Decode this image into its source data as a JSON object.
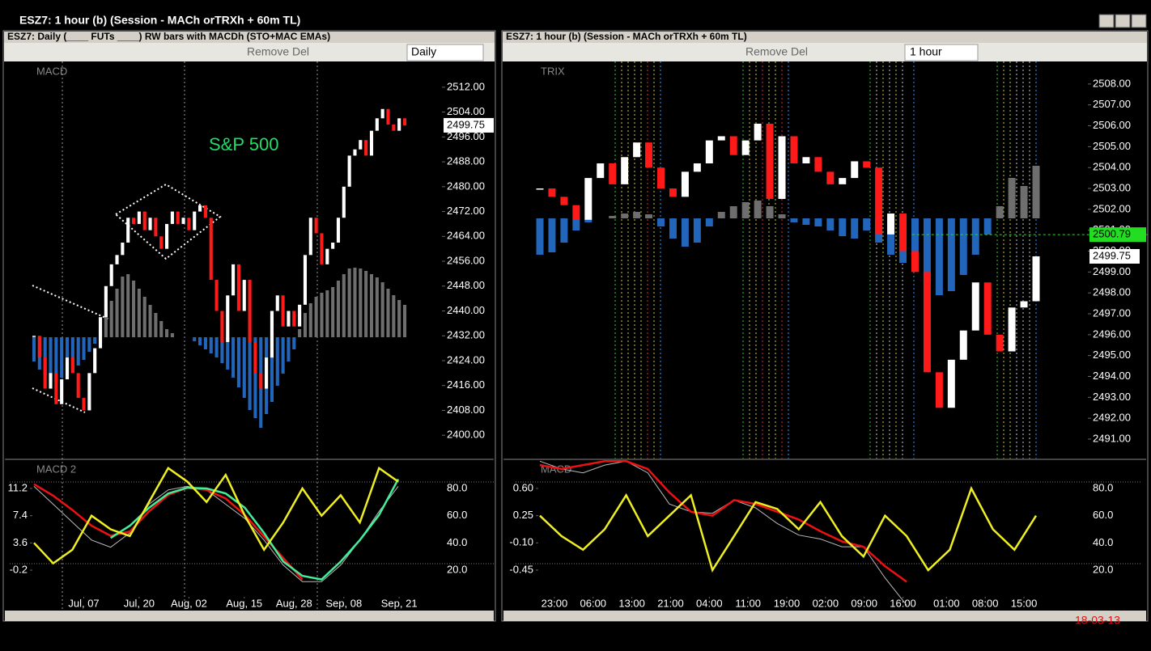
{
  "window": {
    "title": "ESZ7: 1 hour (b) (Session - MACh orTRXh + 60m TL)"
  },
  "left": {
    "title": "ESZ7: Daily (____ FUTs ____) RW bars with MACDh (STO+MAC EMAs)",
    "remove": "Remove Del",
    "interval": "Daily",
    "price": {
      "label": "MACD",
      "annotation": "S&P 500",
      "ylim": [
        2392.5,
        2520.3
      ],
      "yticks": [
        {
          "value": 2512,
          "label": "2512.00"
        },
        {
          "value": 2504,
          "label": "2504.00"
        },
        {
          "value": 2496,
          "label": "2496.00"
        },
        {
          "value": 2488,
          "label": "2488.00"
        },
        {
          "value": 2480,
          "label": "2480.00"
        },
        {
          "value": 2472,
          "label": "2472.00"
        },
        {
          "value": 2464,
          "label": "2464.00"
        },
        {
          "value": 2456,
          "label": "2456.00"
        },
        {
          "value": 2448,
          "label": "2448.00"
        },
        {
          "value": 2440,
          "label": "2440.00"
        },
        {
          "value": 2432,
          "label": "2432.00"
        },
        {
          "value": 2424,
          "label": "2424.00"
        },
        {
          "value": 2416,
          "label": "2416.00"
        },
        {
          "value": 2408,
          "label": "2408.00"
        },
        {
          "value": 2400,
          "label": "2400.00"
        }
      ],
      "closes": [
        2432,
        2425,
        2415,
        2420,
        2410,
        2418,
        2425,
        2420,
        2412,
        2408,
        2420,
        2428,
        2438,
        2448,
        2455,
        2458,
        2462,
        2470,
        2468,
        2472,
        2466,
        2470,
        2464,
        2460,
        2468,
        2472,
        2468,
        2470,
        2466,
        2472,
        2474,
        2470,
        2450,
        2440,
        2430,
        2445,
        2455,
        2440,
        2450,
        2430,
        2420,
        2415,
        2425,
        2440,
        2445,
        2435,
        2440,
        2435,
        2442,
        2458,
        2470,
        2465,
        2455,
        2460,
        2462,
        2470,
        2480,
        2490,
        2492,
        2495,
        2490,
        2498,
        2502,
        2505,
        2500,
        2498,
        2502,
        2499.75
      ],
      "histogram": [
        -30,
        -40,
        -48,
        -55,
        -55,
        -50,
        -45,
        -40,
        -35,
        -28,
        -18,
        -8,
        10,
        28,
        45,
        60,
        75,
        78,
        70,
        60,
        50,
        40,
        30,
        20,
        10,
        5,
        0,
        0,
        0,
        -5,
        -10,
        -15,
        -20,
        -25,
        -32,
        -40,
        -50,
        -62,
        -75,
        -90,
        -100,
        -112,
        -95,
        -80,
        -60,
        -45,
        -30,
        -15,
        10,
        30,
        42,
        50,
        55,
        58,
        62,
        70,
        78,
        85,
        86,
        85,
        82,
        78,
        74,
        68,
        60,
        52,
        46,
        40
      ],
      "last": 2499.75,
      "up_color": "#ffffff",
      "down_color": "#ff1a1a",
      "hist_up": "#6e6e6e",
      "hist_down": "#2266bb"
    },
    "osc": {
      "label": "MACD 2",
      "ylim": [
        -5.84,
        15.04
      ],
      "yticks": [
        11.2,
        7.4,
        3.6,
        -0.2
      ],
      "y2lim": [
        -9.7,
        100.2
      ],
      "y2ticks": [
        {
          "value": 80,
          "label": "80.0"
        },
        {
          "value": 60,
          "label": "60.0"
        },
        {
          "value": 40,
          "label": "40.0"
        },
        {
          "value": 20,
          "label": "20.0"
        }
      ],
      "series": [
        {
          "color": "#bbbbbb",
          "values": [
            11.5,
            9.0,
            6.5,
            4.0,
            3.0,
            5.0,
            9.0,
            11.0,
            11.5,
            11.0,
            9.0,
            7.0,
            4.0,
            0.5,
            -1.8,
            -1.8,
            0.5,
            4.0,
            8.0,
            11.5
          ]
        },
        {
          "color": "#ee1111",
          "values": [
            11.8,
            10.2,
            8.2,
            6.0,
            4.6,
            5.2,
            8.0,
            10.3,
            11.3,
            11.0,
            9.8,
            7.5,
            4.5,
            1.5,
            -1.5,
            null,
            null,
            null,
            null,
            null
          ]
        },
        {
          "color": "#44ee99",
          "values": [
            null,
            null,
            null,
            null,
            4.3,
            6.0,
            8.5,
            10.5,
            11.3,
            11.2,
            10.5,
            8.5,
            5.0,
            1.0,
            -1.0,
            -1.5,
            1.0,
            4.0,
            7.5,
            12.5
          ]
        },
        {
          "color": "#eeee22",
          "axis": "y2",
          "values": [
            40,
            25,
            35,
            60,
            50,
            45,
            70,
            95,
            85,
            70,
            90,
            60,
            35,
            55,
            80,
            60,
            75,
            55,
            95,
            85
          ]
        }
      ]
    },
    "xticks": [
      {
        "value": 9,
        "label": "Jul, 07"
      },
      {
        "value": 19,
        "label": "Jul, 20"
      },
      {
        "value": 28,
        "label": "Aug, 02"
      },
      {
        "value": 38,
        "label": "Aug, 15"
      },
      {
        "value": 47,
        "label": "Aug, 28"
      },
      {
        "value": 56,
        "label": "Sep, 08"
      },
      {
        "value": 66,
        "label": "Sep, 21"
      }
    ]
  },
  "right": {
    "title": "ESZ7: 1 hour (b) (Session - MACh orTRXh + 60m TL)",
    "remove": "Remove Del",
    "interval": "1 hour",
    "price": {
      "label": "TRIX",
      "ylim": [
        2490.07,
        2509.08
      ],
      "yticks": [
        {
          "value": 2508,
          "label": "2508.00"
        },
        {
          "value": 2507,
          "label": "2507.00"
        },
        {
          "value": 2506,
          "label": "2506.00"
        },
        {
          "value": 2505,
          "label": "2505.00"
        },
        {
          "value": 2504,
          "label": "2504.00"
        },
        {
          "value": 2503,
          "label": "2503.00"
        },
        {
          "value": 2502,
          "label": "2502.00"
        },
        {
          "value": 2501,
          "label": "2501.00"
        },
        {
          "value": 2500,
          "label": "2500.00"
        },
        {
          "value": 2499,
          "label": "2499.00"
        },
        {
          "value": 2498,
          "label": "2498.00"
        },
        {
          "value": 2497,
          "label": "2497.00"
        },
        {
          "value": 2496,
          "label": "2496.00"
        },
        {
          "value": 2495,
          "label": "2495.00"
        },
        {
          "value": 2494,
          "label": "2494.00"
        },
        {
          "value": 2493,
          "label": "2493.00"
        },
        {
          "value": 2492,
          "label": "2492.00"
        },
        {
          "value": 2491,
          "label": "2491.00"
        }
      ],
      "closes": [
        2503,
        2502.6,
        2502.2,
        2501.5,
        2503.5,
        2504.2,
        2503.2,
        2504.5,
        2505.2,
        2504.0,
        2503,
        2502.6,
        2503.8,
        2504.2,
        2505.3,
        2505.5,
        2504.6,
        2505.3,
        2506.1,
        2502.5,
        2505.5,
        2504.2,
        2504.5,
        2503.8,
        2503.2,
        2503.5,
        2504.3,
        2504.0,
        2500.8,
        2501.8,
        2500.0,
        2499.0,
        2494.2,
        2492.5,
        2494.8,
        2496.2,
        2498.5,
        2496.0,
        2495.2,
        2497.3,
        2497.6,
        2499.75
      ],
      "histogram": [
        -45,
        -42,
        -30,
        -15,
        -5,
        0,
        3,
        6,
        8,
        5,
        -10,
        -25,
        -35,
        -30,
        -10,
        8,
        15,
        20,
        22,
        15,
        5,
        -5,
        -8,
        -10,
        -15,
        -22,
        -25,
        -15,
        -30,
        -45,
        -55,
        -65,
        -80,
        -95,
        -90,
        -70,
        -45,
        -20,
        15,
        50,
        40,
        65
      ],
      "last": 2499.75,
      "level": 2500.79,
      "level_color": "#22dd22",
      "up_color": "#ffffff",
      "down_color": "#ff1a1a",
      "hist_up": "#6e6e6e",
      "hist_down": "#2266bb"
    },
    "osc": {
      "label": "MACD",
      "ylim": [
        -0.97,
        0.953
      ],
      "yticks": [
        {
          "value": 0.6,
          "label": "0.60"
        },
        0.25,
        {
          "value": -0.1,
          "label": "-0.10"
        },
        -0.45
      ],
      "y2lim": [
        -9.7,
        100.2
      ],
      "y2ticks": [
        {
          "value": 80,
          "label": "80.0"
        },
        {
          "value": 60,
          "label": "60.0"
        },
        {
          "value": 40,
          "label": "40.0"
        },
        {
          "value": 20,
          "label": "20.0"
        }
      ],
      "series": [
        {
          "color": "#bbbbbb",
          "values": [
            0.95,
            0.85,
            0.8,
            0.9,
            0.95,
            0.8,
            0.4,
            0.3,
            0.28,
            0.45,
            0.35,
            0.15,
            0.0,
            -0.05,
            -0.15,
            -0.15,
            -0.55,
            -0.9,
            null,
            null,
            null,
            null,
            null,
            null
          ]
        },
        {
          "color": "#ee1111",
          "values": [
            0.9,
            0.85,
            0.9,
            0.95,
            0.95,
            0.85,
            0.55,
            0.3,
            0.25,
            0.45,
            0.4,
            0.3,
            0.2,
            0.05,
            -0.08,
            -0.15,
            -0.4,
            -0.6,
            null,
            null,
            null,
            null,
            null,
            null
          ]
        },
        {
          "color": "#eeee22",
          "axis": "y2",
          "values": [
            60,
            45,
            35,
            50,
            75,
            45,
            60,
            75,
            20,
            45,
            70,
            65,
            50,
            70,
            45,
            30,
            60,
            45,
            20,
            35,
            80,
            50,
            35,
            60
          ]
        }
      ]
    },
    "xticks": [
      {
        "value": 1.2,
        "label": "23:00"
      },
      {
        "value": 4.4,
        "label": "06:00"
      },
      {
        "value": 7.6,
        "label": "13:00"
      },
      {
        "value": 10.8,
        "label": "21:00"
      },
      {
        "value": 14,
        "label": "04:00"
      },
      {
        "value": 17.2,
        "label": "11:00"
      },
      {
        "value": 20.4,
        "label": "19:00"
      },
      {
        "value": 23.6,
        "label": "02:00"
      },
      {
        "value": 26.8,
        "label": "09:00"
      },
      {
        "value": 30,
        "label": "16:00"
      },
      {
        "value": 33.6,
        "label": "01:00"
      },
      {
        "value": 36.8,
        "label": "08:00"
      },
      {
        "value": 40,
        "label": "15:00"
      }
    ]
  },
  "date": "18-03-13"
}
